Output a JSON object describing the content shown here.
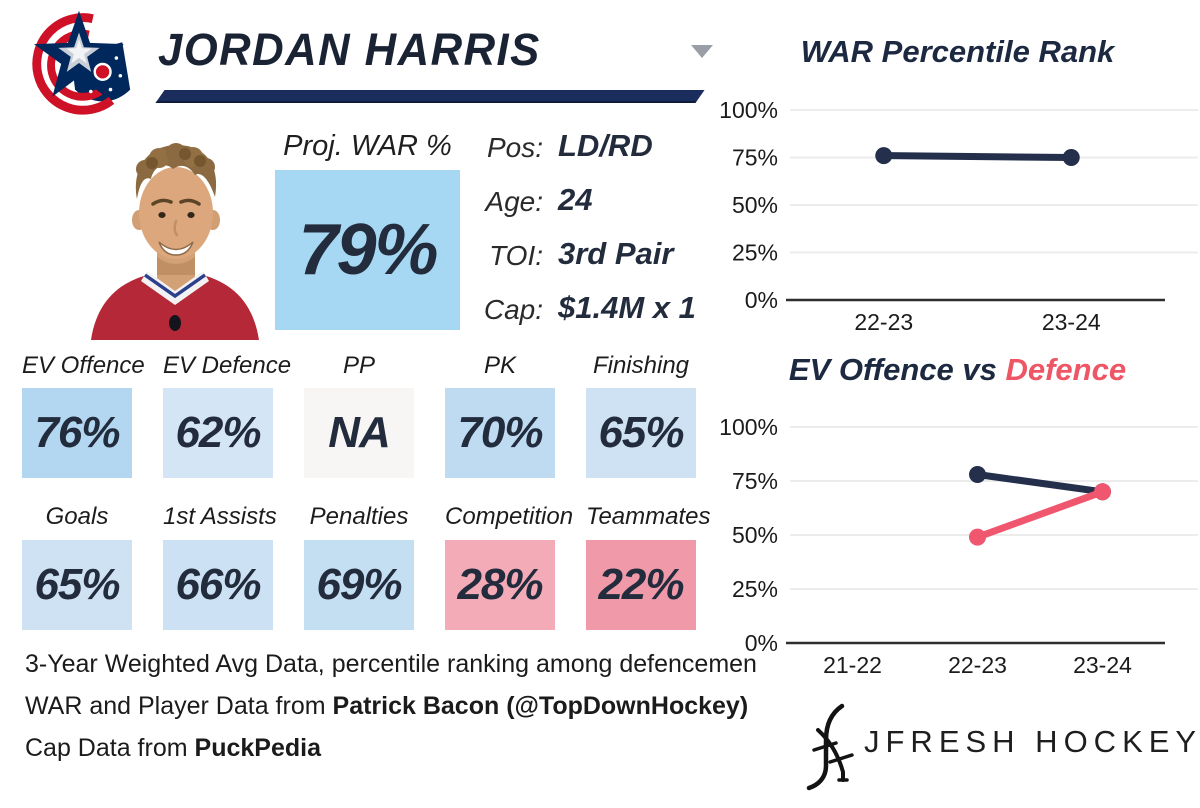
{
  "header": {
    "player_name": "JORDAN HARRIS",
    "team_logo": "columbus-blue-jackets-logo"
  },
  "proj_war": {
    "label": "Proj. WAR %",
    "value": "79%",
    "box_color": "#a7d8f3"
  },
  "info": [
    {
      "label": "Pos:",
      "value": "LD/RD"
    },
    {
      "label": "Age:",
      "value": "24"
    },
    {
      "label": "TOI:",
      "value": "3rd Pair"
    },
    {
      "label": "Cap:",
      "value": "$1.4M x 1"
    }
  ],
  "stats": {
    "row1": [
      {
        "label": "EV Offence",
        "value": "76%",
        "color": "#b3d7f1"
      },
      {
        "label": "EV Defence",
        "value": "62%",
        "color": "#d4e5f5"
      },
      {
        "label": "PP",
        "value": "NA",
        "color": "#f7f6f4"
      },
      {
        "label": "PK",
        "value": "70%",
        "color": "#bedbf2"
      },
      {
        "label": "Finishing",
        "value": "65%",
        "color": "#cfe2f4"
      }
    ],
    "row2": [
      {
        "label": "Goals",
        "value": "65%",
        "color": "#cfe2f4"
      },
      {
        "label": "1st Assists",
        "value": "66%",
        "color": "#cde1f4"
      },
      {
        "label": "Penalties",
        "value": "69%",
        "color": "#c4def2"
      },
      {
        "label": "Competition",
        "value": "28%",
        "color": "#f2abb7"
      },
      {
        "label": "Teammates",
        "value": "22%",
        "color": "#ef99a9"
      }
    ]
  },
  "footer": {
    "line1": "3-Year Weighted Avg Data, percentile ranking among defencemen",
    "line2_prefix": "WAR and Player Data from ",
    "line2_bold": "Patrick Bacon (@TopDownHockey)",
    "line3_prefix": "Cap Data from ",
    "line3_bold": "PuckPedia"
  },
  "branding": {
    "wordmark": "JFRESH HOCKEY",
    "monogram": "jfresh-monogram"
  },
  "colors": {
    "navy": "#1a2d5c",
    "dark_text": "#1c2940",
    "line_navy": "#232f4b",
    "accent_pink": "#ee5565",
    "line_pink": "#f0566e",
    "grid_gray": "#ececec",
    "axis_dark": "#2e2e2e"
  },
  "chart_data": [
    {
      "type": "line",
      "title": "WAR Percentile Rank",
      "title_main": "WAR Percentile Rank",
      "title_accent": "",
      "categories": [
        "22-23",
        "23-24"
      ],
      "series": [
        {
          "name": "WAR Percentile",
          "color": "#232f4b",
          "values": [
            76,
            75
          ]
        }
      ],
      "xlabel": "",
      "ylabel": "",
      "ylim": [
        0,
        100
      ],
      "yticks": [
        0,
        25,
        50,
        75,
        100
      ],
      "ytick_suffix": "%",
      "grid": true,
      "legend": "none"
    },
    {
      "type": "line",
      "title": "EV Offence vs Defence",
      "title_main": "EV Offence vs ",
      "title_accent": "Defence",
      "categories": [
        "21-22",
        "22-23",
        "23-24"
      ],
      "series": [
        {
          "name": "EV Offence",
          "color": "#232f4b",
          "values": [
            null,
            78,
            70
          ]
        },
        {
          "name": "EV Defence",
          "color": "#f0566e",
          "values": [
            null,
            49,
            70
          ]
        }
      ],
      "xlabel": "",
      "ylabel": "",
      "ylim": [
        0,
        100
      ],
      "yticks": [
        0,
        25,
        50,
        75,
        100
      ],
      "ytick_suffix": "%",
      "grid": true,
      "legend": "none"
    }
  ]
}
